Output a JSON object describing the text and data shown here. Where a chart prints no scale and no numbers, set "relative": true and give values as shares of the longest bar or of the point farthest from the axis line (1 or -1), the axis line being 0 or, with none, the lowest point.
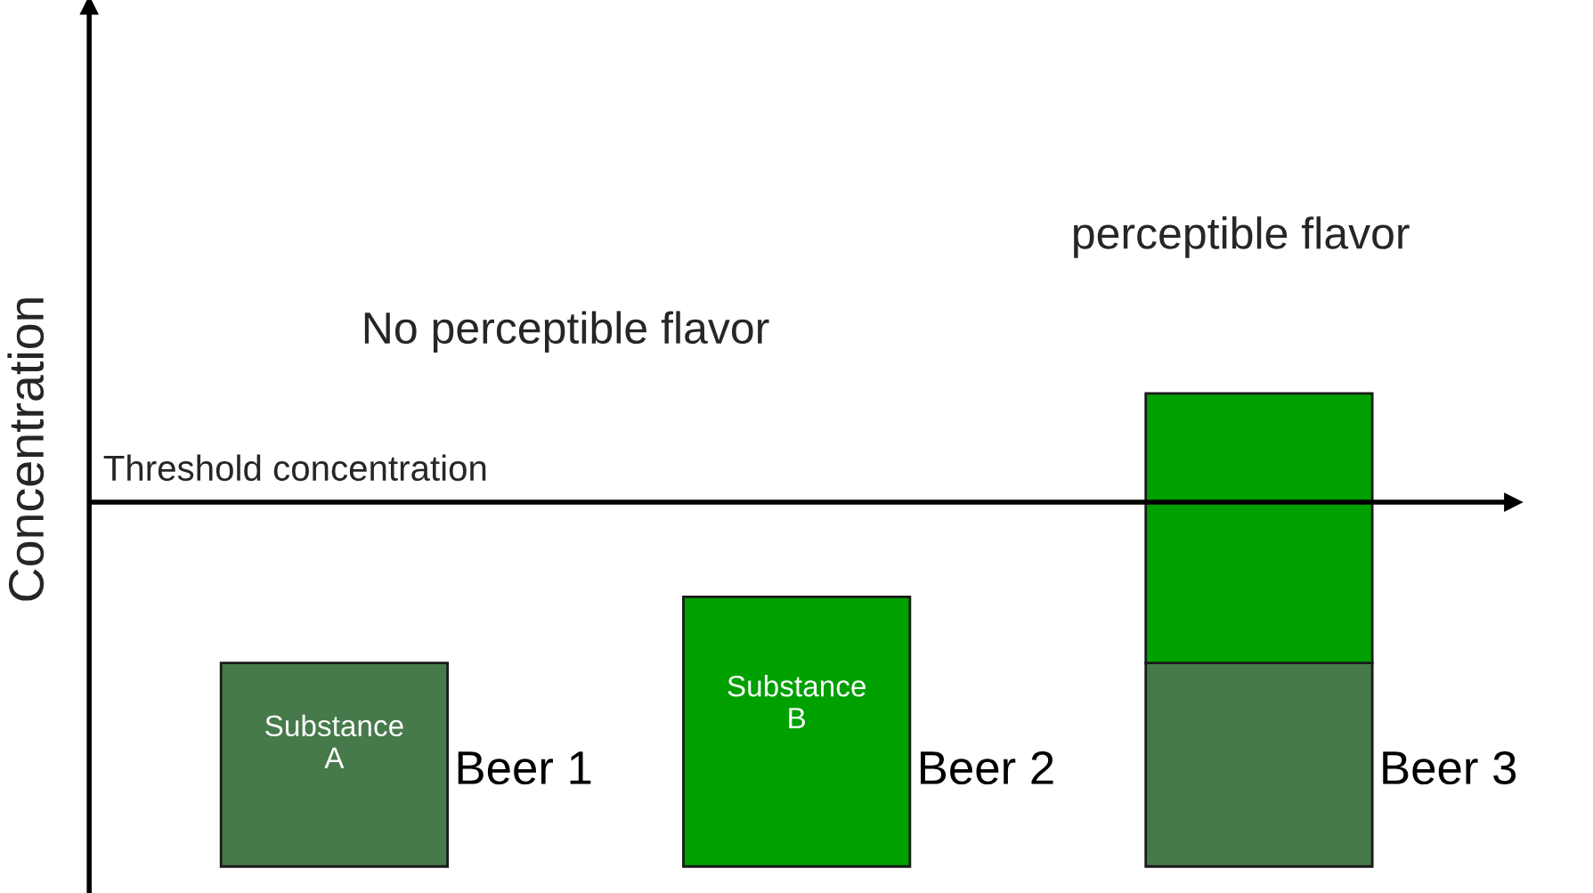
{
  "chart_data": {
    "type": "bar",
    "stacked": true,
    "relative": true,
    "ylabel": "Concentration",
    "categories": [
      "Beer 1",
      "Beer 2",
      "Beer 3"
    ],
    "series": [
      {
        "name": "Substance A",
        "color": "#467a4a",
        "values": [
          0.43,
          null,
          0.43
        ]
      },
      {
        "name": "Substance B",
        "color": "#00a000",
        "values": [
          null,
          0.57,
          0.57
        ]
      }
    ],
    "ref_lines": [
      {
        "axis": "y",
        "value": 0.77,
        "label": "Threshold concentration",
        "color": "#000000"
      }
    ],
    "annotations": [
      "No perceptible flavor",
      "perceptible flavor"
    ],
    "legend": false
  }
}
